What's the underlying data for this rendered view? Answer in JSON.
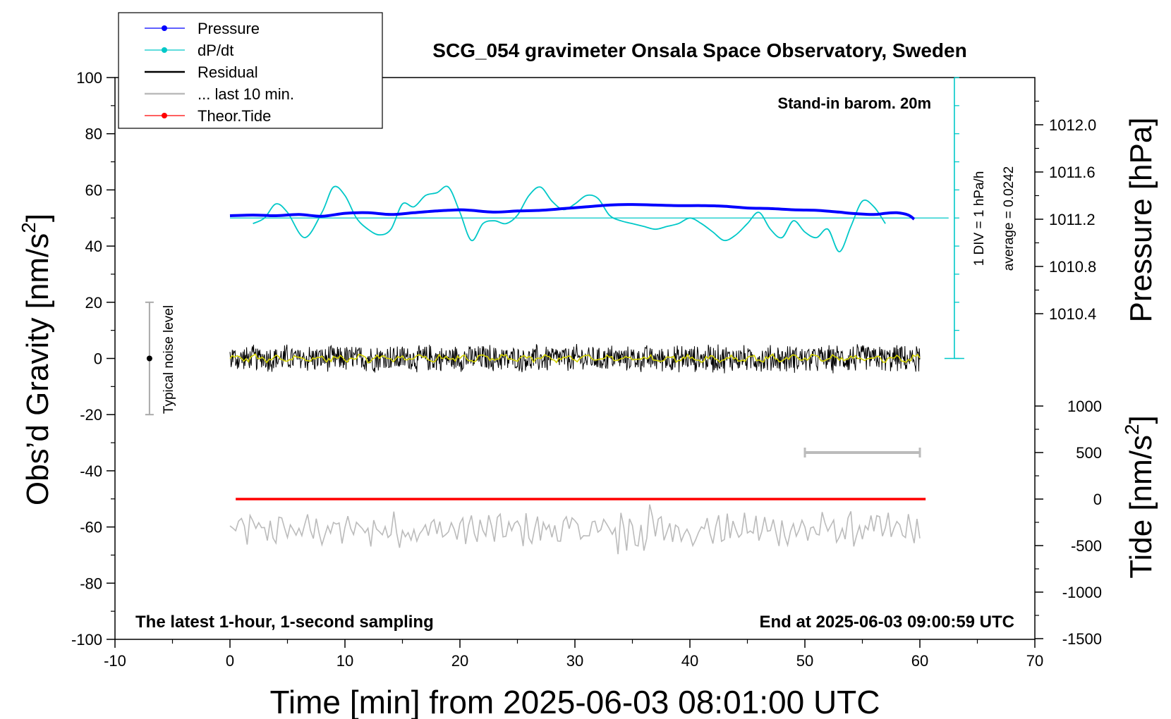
{
  "chart_data": {
    "type": "line",
    "title": "SCG_054 gravimeter Onsala Space Observatory, Sweden",
    "xlabel": "Time [min] from 2025-06-03 08:01:00 UTC",
    "xlim": [
      -10,
      70
    ],
    "xticks": [
      "-10",
      "0",
      "10",
      "20",
      "30",
      "40",
      "50",
      "60",
      "70"
    ],
    "left_axis": {
      "label_main": "Obs’d Gravity [nm/s",
      "label_sup": "2",
      "label_end": "]",
      "ylim": [
        -100,
        100
      ],
      "ticks": [
        "-100",
        "-80",
        "-60",
        "-40",
        "-20",
        "0",
        "20",
        "40",
        "60",
        "80",
        "100"
      ]
    },
    "pressure_axis": {
      "label": "Pressure [hPa]",
      "ticks": [
        "1010.4",
        "1010.8",
        "1011.2",
        "1011.6",
        "1012.0"
      ],
      "tick_values": [
        1010.4,
        1010.8,
        1011.2,
        1011.6,
        1012.0
      ]
    },
    "tide_axis": {
      "label_main": "Tide [nm/s",
      "label_sup": "2",
      "label_end": "]",
      "ticks": [
        "-1500",
        "-1000",
        "-500",
        "0",
        "500",
        "1000"
      ],
      "tick_values": [
        -1500,
        -1000,
        -500,
        0,
        500,
        1000
      ]
    },
    "legend": {
      "position": "top-left",
      "entries": [
        {
          "label": "Pressure",
          "color": "#0000ff",
          "marker": true
        },
        {
          "label": "dP/dt",
          "color": "#00c8c8",
          "marker": true
        },
        {
          "label": "Residual",
          "color": "#000000",
          "marker": false
        },
        {
          "label": "... last 10 min.",
          "color": "#bbbbbb",
          "marker": false
        },
        {
          "label": "Theor.Tide",
          "color": "#ff0000",
          "marker": true
        }
      ]
    },
    "annotations": {
      "barometer": "Stand-in barom. 20m",
      "div_scale": "1 DIV = 1 hPa/h",
      "average": "average = 0.0242",
      "noise_label": "Typical noise level",
      "bottom_left": "The latest 1-hour, 1-second sampling",
      "bottom_right": "End at 2025-06-03 09:00:59 UTC"
    },
    "noise_bar": {
      "x": -7,
      "center": 0,
      "range": [
        -20,
        20
      ]
    },
    "last10_bar": {
      "x_range": [
        50,
        60
      ],
      "tide_value": 500
    },
    "dpdt_baseline": 50,
    "series": [
      {
        "name": "Pressure",
        "color": "#0000ff",
        "units": "hPa",
        "x": [
          0,
          2,
          4,
          6,
          8,
          10,
          12,
          14,
          16,
          18,
          20,
          21,
          23,
          25,
          27,
          29,
          31,
          33,
          35,
          37,
          39,
          41,
          43,
          45,
          47,
          49,
          51,
          53,
          54,
          56,
          57,
          58,
          59,
          59.5
        ],
        "y": [
          1011.23,
          1011.235,
          1011.23,
          1011.24,
          1011.225,
          1011.25,
          1011.255,
          1011.24,
          1011.255,
          1011.27,
          1011.28,
          1011.275,
          1011.26,
          1011.27,
          1011.275,
          1011.29,
          1011.305,
          1011.32,
          1011.325,
          1011.32,
          1011.315,
          1011.315,
          1011.31,
          1011.295,
          1011.29,
          1011.28,
          1011.275,
          1011.26,
          1011.25,
          1011.24,
          1011.25,
          1011.255,
          1011.235,
          1011.2
        ]
      },
      {
        "name": "dP/dt",
        "color": "#00c8c8",
        "units": "nm/s2 scale",
        "x": [
          2,
          3,
          4,
          5,
          6.5,
          8,
          9,
          10,
          11,
          12,
          13,
          14,
          15,
          16,
          17,
          18,
          19,
          20,
          21,
          22,
          23,
          24,
          25,
          26,
          27,
          28,
          29,
          30,
          31,
          32,
          33,
          34,
          35,
          36,
          37,
          38,
          39,
          40,
          41,
          42,
          43,
          44,
          45,
          46,
          47,
          48,
          49,
          50,
          51,
          52,
          53,
          54,
          55,
          56,
          57
        ],
        "y": [
          48,
          50,
          55,
          52,
          43,
          52,
          61,
          58,
          50,
          46,
          44,
          46,
          55,
          54,
          58,
          59,
          61,
          52,
          42,
          48,
          49,
          48,
          51,
          58,
          61,
          56,
          53,
          55,
          58,
          57,
          51,
          49,
          48,
          47,
          46,
          47,
          48,
          50,
          48,
          45,
          42,
          44,
          48,
          52,
          46,
          43,
          49,
          45,
          43,
          46,
          38,
          47,
          56,
          54,
          48
        ]
      },
      {
        "name": "Residual",
        "color": "#000000",
        "x_range": [
          0,
          60
        ],
        "y_range": [
          -8,
          9
        ]
      },
      {
        "name": "... last 10 min.",
        "color": "#bbbbbb",
        "x_range": [
          0,
          60
        ],
        "y_range": [
          -70,
          -52
        ]
      },
      {
        "name": "Theor.Tide",
        "color": "#ff0000",
        "units": "nm/s2",
        "x": [
          0.5,
          60.5
        ],
        "y": [
          0,
          0
        ]
      }
    ]
  }
}
